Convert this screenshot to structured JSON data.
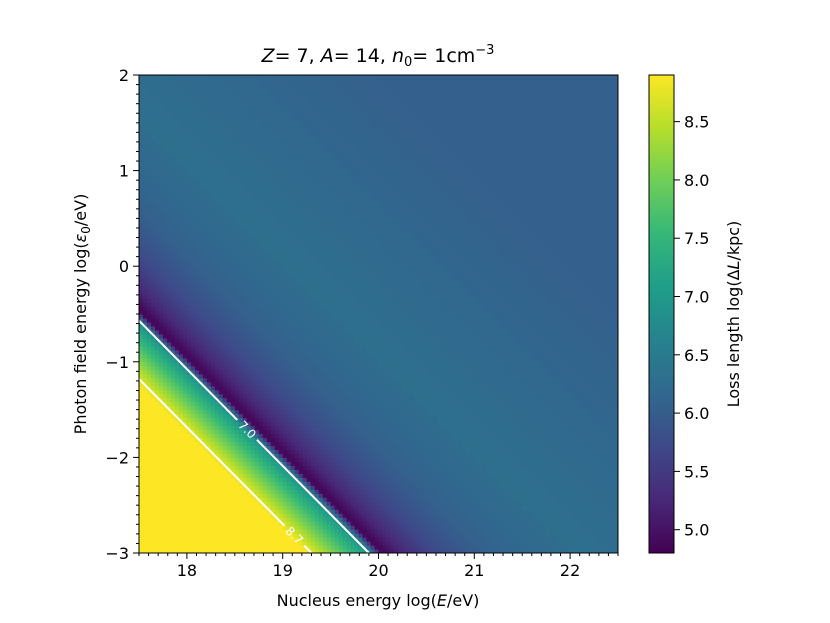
{
  "chart_data": {
    "type": "heatmap",
    "title": "Z = 7, A = 14, n0 = 1cm^-3",
    "title_parts": {
      "z_sym": "Z",
      "z_val": "= 7, ",
      "a_sym": "A",
      "a_val": "= 14, ",
      "n_sym": "n",
      "n_sub": "0",
      "n_val": "= 1cm",
      "n_sup": "−3"
    },
    "xlabel": "Nucleus energy log(E/eV)",
    "xlabel_parts": {
      "pre": "Nucleus energy log(",
      "sym": "E",
      "post": "/eV)"
    },
    "ylabel": "Photon field energy log(ε0/eV)",
    "ylabel_parts": {
      "pre": "Photon field energy log(",
      "sym": "ε",
      "sub": "0",
      "post": "/eV)"
    },
    "colorbar_label": "Loss length log(ΔL/kpc)",
    "colorbar_parts": {
      "pre": "Loss length log(Δ",
      "sym": "L",
      "post": "/kpc)"
    },
    "xlim": [
      17.5,
      22.5
    ],
    "ylim": [
      -3,
      2
    ],
    "x_ticks": [
      18,
      19,
      20,
      21,
      22
    ],
    "x_tick_labels": [
      "18",
      "19",
      "20",
      "21",
      "22"
    ],
    "y_ticks": [
      -3,
      -2,
      -1,
      0,
      1,
      2
    ],
    "y_tick_labels": [
      "−3",
      "−2",
      "−1",
      "0",
      "1",
      "2"
    ],
    "colorbar_range": [
      4.8,
      8.9
    ],
    "colorbar_ticks": [
      5.0,
      5.5,
      6.0,
      6.5,
      7.0,
      7.5,
      8.0,
      8.5
    ],
    "colorbar_tick_labels": [
      "5.0",
      "5.5",
      "6.0",
      "6.5",
      "7.0",
      "7.5",
      "8.0",
      "8.5"
    ],
    "colormap": "viridis",
    "colormap_stops": [
      "#440154",
      "#482878",
      "#3e4989",
      "#31688e",
      "#26828e",
      "#1f9e89",
      "#35b779",
      "#6ece58",
      "#b5de2b",
      "#fde725"
    ],
    "contours": [
      {
        "level": 7.0,
        "label": "7.0",
        "points": [
          [
            17.5,
            -0.57
          ],
          [
            19.9,
            -3.0
          ]
        ]
      },
      {
        "level": 8.7,
        "label": "8.7",
        "points": [
          [
            17.5,
            -1.18
          ],
          [
            19.3,
            -3.0
          ]
        ]
      }
    ],
    "description_values": {
      "saturated_region_value": 8.9,
      "trough_value": 4.8,
      "far_field_value": 6.3
    }
  }
}
